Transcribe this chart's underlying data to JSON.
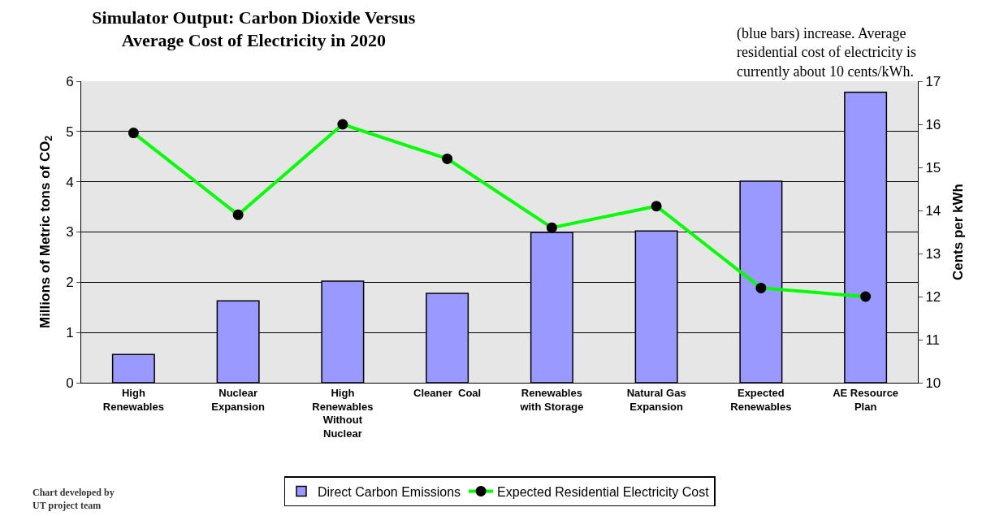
{
  "chart_data": {
    "type": "bar",
    "title": "Simulator Output: Carbon Dioxide Versus\nAverage Cost of Electricity in 2020",
    "ylabel": "Millions of Metric tons of CO$_{2}$",
    "y2label": "Cents per kWh",
    "categories": [
      "High\nRenewables",
      "Nuclear\nExpansion",
      "High\nRenewables\nWithout\nNuclear",
      "Cleaner  Coal",
      "Renewables\nwith Storage",
      "Natural Gas\nExpansion",
      "Expected\nRenewables",
      "AE Resource\nPlan"
    ],
    "series": [
      {
        "name": "Direct Carbon Emissions",
        "color": "#9999ff",
        "values": [
          0.56,
          1.63,
          2.02,
          1.78,
          2.99,
          3.02,
          4.01,
          5.78
        ]
      },
      {
        "name": "Expected Residential Electricity Cost",
        "type": "line",
        "axis": "y2",
        "color": "#00ff00",
        "marker": "circle",
        "values": [
          15.8,
          13.9,
          16.0,
          15.2,
          13.6,
          14.1,
          12.2,
          12.0
        ]
      }
    ],
    "ylim": [
      0,
      6
    ],
    "yticks": [
      0,
      1,
      2,
      3,
      4,
      5,
      6
    ],
    "y2lim": [
      10,
      17
    ],
    "y2ticks": [
      10,
      11,
      12,
      13,
      14,
      15,
      16,
      17
    ],
    "grid": "y",
    "legend": "bottom",
    "annotations": [
      "(blue bars) increase. Average\nresidential cost of electricity is\ncurrently about 10 cents/kWh.",
      "Chart developed by\nUT project team"
    ]
  }
}
